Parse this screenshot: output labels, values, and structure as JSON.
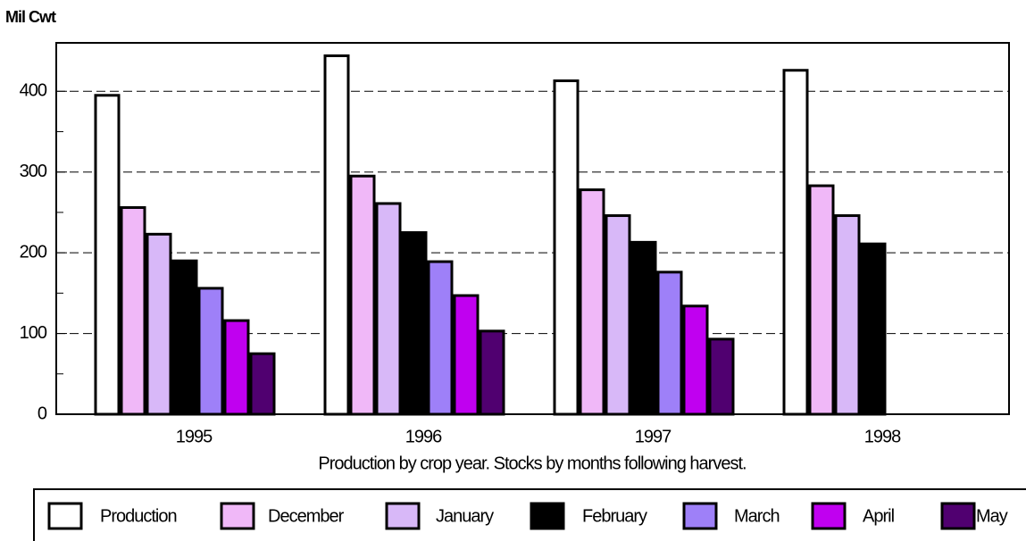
{
  "chart_data": {
    "type": "bar",
    "y_axis_label": "Mil Cwt",
    "x_axis_label": "Production by crop year.  Stocks by months following harvest.",
    "categories": [
      "1995",
      "1996",
      "1997",
      "1998"
    ],
    "series": [
      {
        "name": "Production",
        "color": "#ffffff",
        "values": [
          395,
          444,
          413,
          426
        ]
      },
      {
        "name": "December",
        "color": "#f0b8f8",
        "values": [
          256,
          295,
          278,
          283
        ]
      },
      {
        "name": "January",
        "color": "#d8b8f8",
        "values": [
          223,
          261,
          246,
          246
        ]
      },
      {
        "name": "February",
        "color": "#000000",
        "values": [
          190,
          225,
          213,
          211
        ]
      },
      {
        "name": "March",
        "color": "#9e80f8",
        "values": [
          156,
          189,
          176,
          null
        ]
      },
      {
        "name": "April",
        "color": "#c000f0",
        "values": [
          116,
          147,
          134,
          null
        ]
      },
      {
        "name": "May",
        "color": "#500070",
        "values": [
          75,
          103,
          93,
          null
        ]
      }
    ],
    "ylim": [
      0,
      460
    ],
    "yticks": [
      0,
      100,
      200,
      300,
      400
    ],
    "grid": true,
    "legend": "bottom"
  }
}
